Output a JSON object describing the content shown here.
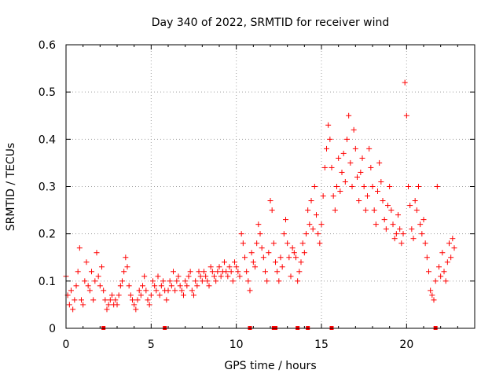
{
  "chart_data": {
    "type": "scatter",
    "title": "Day 340 of 2022, SRMTID for receiver wind",
    "xlabel": "GPS time / hours",
    "ylabel": "SRMTID / TECUs",
    "xlim": [
      0,
      24
    ],
    "ylim": [
      0,
      0.6
    ],
    "x_ticks": [
      0,
      5,
      10,
      15,
      20
    ],
    "y_ticks": [
      0,
      0.1,
      0.2,
      0.3,
      0.4,
      0.5,
      0.6
    ],
    "x_tick_labels": [
      "0",
      "5",
      "10",
      "15",
      "20"
    ],
    "y_tick_labels": [
      "0",
      "0.1",
      "0.2",
      "0.3",
      "0.4",
      "0.5",
      "0.6"
    ],
    "grid": true,
    "marker": "+",
    "color": "#ff0000",
    "series": [
      {
        "name": "SRMTID",
        "x": [
          0.0,
          0.1,
          0.2,
          0.3,
          0.4,
          0.5,
          0.6,
          0.7,
          0.8,
          0.9,
          1.0,
          1.1,
          1.2,
          1.3,
          1.4,
          1.5,
          1.6,
          1.7,
          1.8,
          1.9,
          2.0,
          2.1,
          2.2,
          2.3,
          2.4,
          2.5,
          2.6,
          2.7,
          2.8,
          2.9,
          3.0,
          3.1,
          3.2,
          3.3,
          3.4,
          3.5,
          3.6,
          3.7,
          3.8,
          3.9,
          4.0,
          4.1,
          4.2,
          4.3,
          4.4,
          4.5,
          4.6,
          4.7,
          4.8,
          4.9,
          5.0,
          5.1,
          5.2,
          5.3,
          5.4,
          5.5,
          5.6,
          5.7,
          5.8,
          5.9,
          6.0,
          6.1,
          6.2,
          6.3,
          6.4,
          6.5,
          6.6,
          6.7,
          6.8,
          6.9,
          7.0,
          7.1,
          7.2,
          7.3,
          7.4,
          7.5,
          7.6,
          7.7,
          7.8,
          7.9,
          8.0,
          8.1,
          8.2,
          8.3,
          8.4,
          8.5,
          8.6,
          8.7,
          8.8,
          8.9,
          9.0,
          9.1,
          9.2,
          9.3,
          9.4,
          9.5,
          9.6,
          9.7,
          9.8,
          9.9,
          10.0,
          10.1,
          10.2,
          10.3,
          10.4,
          10.5,
          10.6,
          10.7,
          10.8,
          10.9,
          11.0,
          11.1,
          11.2,
          11.3,
          11.4,
          11.5,
          11.6,
          11.7,
          11.8,
          11.9,
          12.0,
          12.1,
          12.2,
          12.3,
          12.4,
          12.5,
          12.6,
          12.7,
          12.8,
          12.9,
          13.0,
          13.1,
          13.2,
          13.3,
          13.4,
          13.5,
          13.6,
          13.7,
          13.8,
          13.9,
          14.0,
          14.1,
          14.2,
          14.3,
          14.4,
          14.5,
          14.6,
          14.7,
          14.8,
          14.9,
          15.0,
          15.1,
          15.2,
          15.3,
          15.4,
          15.5,
          15.6,
          15.7,
          15.8,
          15.9,
          16.0,
          16.1,
          16.2,
          16.3,
          16.4,
          16.5,
          16.6,
          16.7,
          16.8,
          16.9,
          17.0,
          17.1,
          17.2,
          17.3,
          17.4,
          17.5,
          17.6,
          17.7,
          17.8,
          17.9,
          18.0,
          18.1,
          18.2,
          18.3,
          18.4,
          18.5,
          18.6,
          18.7,
          18.8,
          18.9,
          19.0,
          19.1,
          19.2,
          19.3,
          19.4,
          19.5,
          19.6,
          19.7,
          19.8,
          19.9,
          20.0,
          20.1,
          20.2,
          20.3,
          20.4,
          20.5,
          20.6,
          20.7,
          20.8,
          20.9,
          21.0,
          21.1,
          21.2,
          21.3,
          21.4,
          21.5,
          21.6,
          21.7,
          21.8,
          21.9,
          22.0,
          22.1,
          22.2,
          22.3,
          22.4,
          22.5,
          22.6,
          22.7,
          22.8
        ],
        "y": [
          0.11,
          0.07,
          0.05,
          0.08,
          0.04,
          0.06,
          0.09,
          0.12,
          0.17,
          0.06,
          0.05,
          0.1,
          0.14,
          0.09,
          0.08,
          0.12,
          0.06,
          0.1,
          0.16,
          0.11,
          0.09,
          0.13,
          0.08,
          0.06,
          0.04,
          0.05,
          0.06,
          0.07,
          0.05,
          0.06,
          0.05,
          0.07,
          0.09,
          0.1,
          0.12,
          0.15,
          0.13,
          0.09,
          0.07,
          0.06,
          0.05,
          0.04,
          0.06,
          0.08,
          0.07,
          0.09,
          0.11,
          0.08,
          0.06,
          0.05,
          0.07,
          0.1,
          0.09,
          0.08,
          0.11,
          0.07,
          0.09,
          0.1,
          0.08,
          0.06,
          0.08,
          0.1,
          0.09,
          0.12,
          0.08,
          0.1,
          0.11,
          0.09,
          0.08,
          0.07,
          0.1,
          0.09,
          0.11,
          0.12,
          0.08,
          0.07,
          0.1,
          0.09,
          0.12,
          0.11,
          0.1,
          0.12,
          0.11,
          0.1,
          0.09,
          0.13,
          0.12,
          0.11,
          0.1,
          0.12,
          0.13,
          0.11,
          0.12,
          0.14,
          0.12,
          0.11,
          0.13,
          0.12,
          0.1,
          0.14,
          0.13,
          0.12,
          0.11,
          0.2,
          0.18,
          0.15,
          0.12,
          0.1,
          0.08,
          0.16,
          0.14,
          0.13,
          0.18,
          0.22,
          0.2,
          0.17,
          0.15,
          0.12,
          0.1,
          0.16,
          0.27,
          0.25,
          0.18,
          0.14,
          0.12,
          0.1,
          0.15,
          0.13,
          0.2,
          0.23,
          0.18,
          0.15,
          0.11,
          0.17,
          0.16,
          0.15,
          0.1,
          0.12,
          0.14,
          0.18,
          0.16,
          0.2,
          0.25,
          0.22,
          0.27,
          0.21,
          0.3,
          0.24,
          0.2,
          0.18,
          0.22,
          0.28,
          0.34,
          0.38,
          0.43,
          0.4,
          0.34,
          0.28,
          0.25,
          0.3,
          0.36,
          0.29,
          0.33,
          0.37,
          0.31,
          0.4,
          0.45,
          0.35,
          0.3,
          0.42,
          0.38,
          0.32,
          0.27,
          0.33,
          0.36,
          0.3,
          0.25,
          0.28,
          0.38,
          0.34,
          0.3,
          0.25,
          0.22,
          0.29,
          0.35,
          0.31,
          0.27,
          0.23,
          0.21,
          0.26,
          0.3,
          0.25,
          0.22,
          0.19,
          0.2,
          0.24,
          0.21,
          0.18,
          0.2,
          0.52,
          0.45,
          0.3,
          0.26,
          0.21,
          0.19,
          0.27,
          0.25,
          0.3,
          0.22,
          0.2,
          0.23,
          0.18,
          0.15,
          0.12,
          0.08,
          0.07,
          0.06,
          0.1,
          0.3,
          0.13,
          0.11,
          0.16,
          0.12,
          0.1,
          0.14,
          0.18,
          0.15,
          0.19,
          0.17
        ]
      }
    ],
    "axis_markers_x": [
      2.2,
      5.8,
      10.8,
      12.2,
      12.3,
      13.6,
      14.2,
      15.6,
      21.7
    ]
  }
}
